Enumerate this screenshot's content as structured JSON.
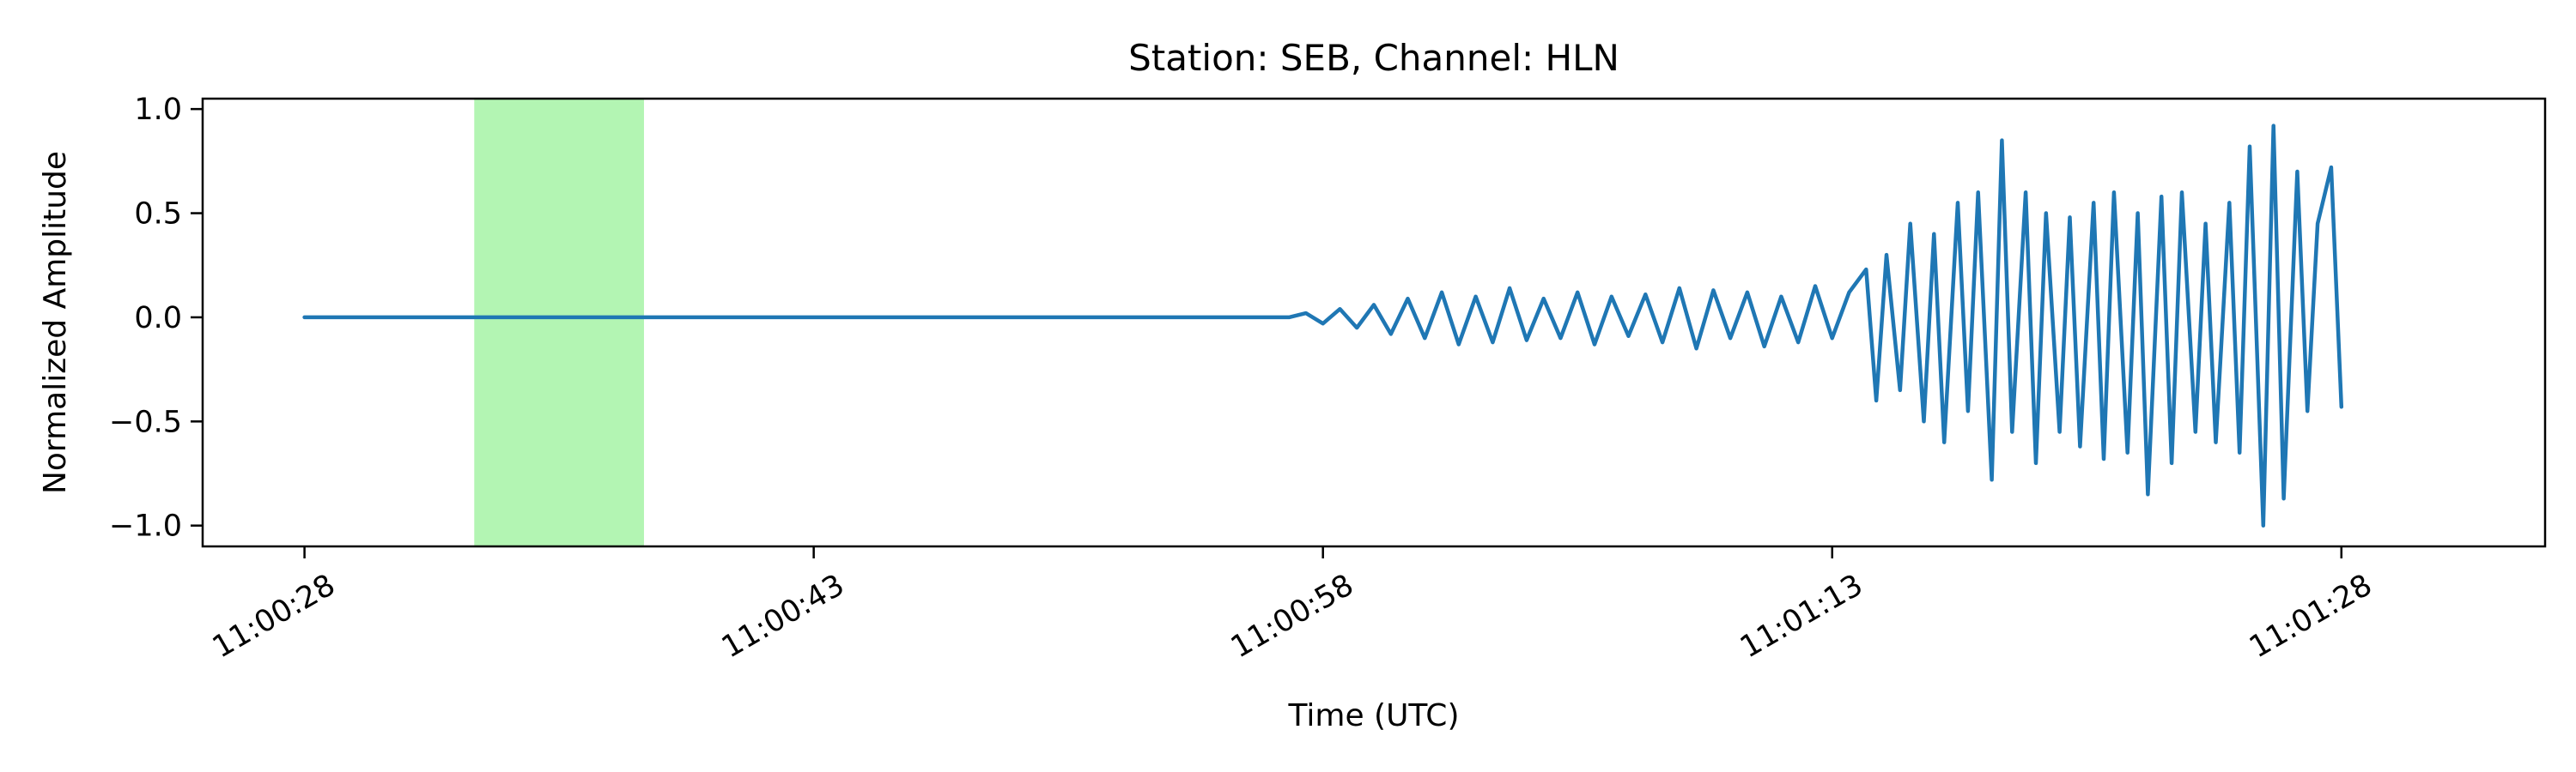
{
  "chart_data": {
    "type": "line",
    "title": "Station: SEB, Channel: HLN",
    "xlabel": "Time (UTC)",
    "ylabel": "Normalized Amplitude",
    "x_unit": "seconds after 11:00:28 UTC",
    "xlim": [
      -3,
      66
    ],
    "ylim": [
      -1.1,
      1.05
    ],
    "x_ticks": [
      {
        "value": 0,
        "label": "11:00:28"
      },
      {
        "value": 15,
        "label": "11:00:43"
      },
      {
        "value": 30,
        "label": "11:00:58"
      },
      {
        "value": 45,
        "label": "11:01:13"
      },
      {
        "value": 60,
        "label": "11:01:28"
      }
    ],
    "y_ticks": [
      {
        "value": 1.0,
        "label": "1.0"
      },
      {
        "value": 0.5,
        "label": "0.5"
      },
      {
        "value": 0.0,
        "label": "0.0"
      },
      {
        "value": -0.5,
        "label": "−0.5"
      },
      {
        "value": -1.0,
        "label": "−1.0"
      }
    ],
    "highlight_span": {
      "x_start": 5,
      "x_end": 10,
      "color": "#b3f5b3"
    },
    "series": [
      {
        "color": "#1f77b4",
        "x": [
          0,
          5,
          10,
          15,
          20,
          25,
          29,
          29.5,
          30,
          30.5,
          31,
          31.5,
          32,
          32.5,
          33,
          33.5,
          34,
          34.5,
          35,
          35.5,
          36,
          36.5,
          37,
          37.5,
          38,
          38.5,
          39,
          39.5,
          40,
          40.5,
          41,
          41.5,
          42,
          42.5,
          43,
          43.5,
          44,
          44.5,
          45,
          45.5,
          46,
          46.3,
          46.6,
          47,
          47.3,
          47.7,
          48,
          48.3,
          48.7,
          49,
          49.3,
          49.7,
          50,
          50.3,
          50.7,
          51,
          51.3,
          51.7,
          52,
          52.3,
          52.7,
          53,
          53.3,
          53.7,
          54,
          54.3,
          54.7,
          55,
          55.3,
          55.7,
          56,
          56.3,
          56.7,
          57,
          57.3,
          57.7,
          58,
          58.3,
          58.7,
          59,
          59.3,
          59.7,
          60
        ],
        "y": [
          0.0,
          0.0,
          0.0,
          0.0,
          0.0,
          0.0,
          0.0,
          0.02,
          -0.03,
          0.04,
          -0.05,
          0.06,
          -0.08,
          0.09,
          -0.1,
          0.12,
          -0.13,
          0.1,
          -0.12,
          0.14,
          -0.11,
          0.09,
          -0.1,
          0.12,
          -0.13,
          0.1,
          -0.09,
          0.11,
          -0.12,
          0.14,
          -0.15,
          0.13,
          -0.1,
          0.12,
          -0.14,
          0.1,
          -0.12,
          0.15,
          -0.1,
          0.12,
          0.23,
          -0.4,
          0.3,
          -0.35,
          0.45,
          -0.5,
          0.4,
          -0.6,
          0.55,
          -0.45,
          0.6,
          -0.78,
          0.85,
          -0.55,
          0.6,
          -0.7,
          0.5,
          -0.55,
          0.48,
          -0.62,
          0.55,
          -0.68,
          0.6,
          -0.65,
          0.5,
          -0.85,
          0.58,
          -0.7,
          0.6,
          -0.55,
          0.45,
          -0.6,
          0.55,
          -0.65,
          0.82,
          -1.0,
          0.92,
          -0.87,
          0.7,
          -0.45,
          0.45,
          0.72,
          -0.43
        ]
      }
    ]
  }
}
